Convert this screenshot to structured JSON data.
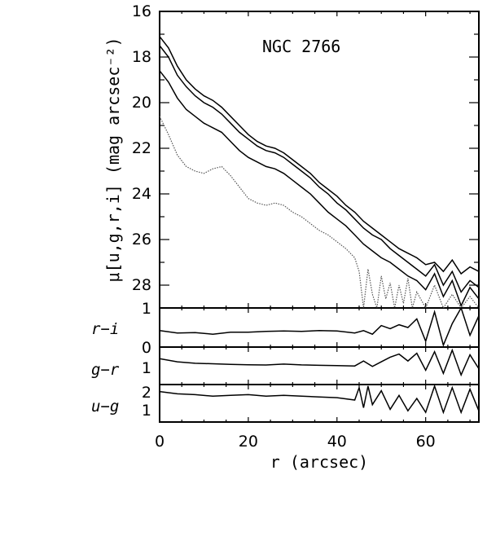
{
  "chart_data": [
    {
      "panel": "surface-brightness",
      "type": "line",
      "annotation": "NGC 2766",
      "ylabel": "μ[u,g,r,i] (mag arcsec⁻²)",
      "ylim": [
        16,
        29
      ],
      "y_inverted": true,
      "yticks": [
        "16",
        "18",
        "20",
        "22",
        "24",
        "26",
        "28"
      ],
      "xlim": [
        0,
        72
      ],
      "series": [
        {
          "style": "solid",
          "points": [
            [
              0,
              17.1
            ],
            [
              2,
              17.6
            ],
            [
              4,
              18.4
            ],
            [
              6,
              19.0
            ],
            [
              8,
              19.4
            ],
            [
              10,
              19.7
            ],
            [
              12,
              19.9
            ],
            [
              14,
              20.2
            ],
            [
              16,
              20.6
            ],
            [
              18,
              21.0
            ],
            [
              20,
              21.4
            ],
            [
              22,
              21.7
            ],
            [
              24,
              21.9
            ],
            [
              26,
              22.0
            ],
            [
              28,
              22.2
            ],
            [
              30,
              22.5
            ],
            [
              32,
              22.8
            ],
            [
              34,
              23.1
            ],
            [
              36,
              23.5
            ],
            [
              38,
              23.8
            ],
            [
              40,
              24.1
            ],
            [
              42,
              24.5
            ],
            [
              44,
              24.8
            ],
            [
              46,
              25.2
            ],
            [
              48,
              25.5
            ],
            [
              50,
              25.8
            ],
            [
              52,
              26.1
            ],
            [
              54,
              26.4
            ],
            [
              56,
              26.6
            ],
            [
              58,
              26.8
            ],
            [
              60,
              27.1
            ],
            [
              62,
              27.0
            ],
            [
              64,
              27.4
            ],
            [
              66,
              26.9
            ],
            [
              68,
              27.5
            ],
            [
              70,
              27.2
            ],
            [
              72,
              27.4
            ]
          ]
        },
        {
          "style": "solid",
          "points": [
            [
              0,
              17.5
            ],
            [
              2,
              18.0
            ],
            [
              4,
              18.8
            ],
            [
              6,
              19.3
            ],
            [
              8,
              19.7
            ],
            [
              10,
              20.0
            ],
            [
              12,
              20.2
            ],
            [
              14,
              20.5
            ],
            [
              16,
              20.9
            ],
            [
              18,
              21.3
            ],
            [
              20,
              21.6
            ],
            [
              22,
              21.9
            ],
            [
              24,
              22.1
            ],
            [
              26,
              22.2
            ],
            [
              28,
              22.4
            ],
            [
              30,
              22.7
            ],
            [
              32,
              23.0
            ],
            [
              34,
              23.3
            ],
            [
              36,
              23.7
            ],
            [
              38,
              24.0
            ],
            [
              40,
              24.4
            ],
            [
              42,
              24.7
            ],
            [
              44,
              25.1
            ],
            [
              46,
              25.5
            ],
            [
              48,
              25.8
            ],
            [
              50,
              26.0
            ],
            [
              52,
              26.4
            ],
            [
              54,
              26.7
            ],
            [
              56,
              27.0
            ],
            [
              58,
              27.3
            ],
            [
              60,
              27.6
            ],
            [
              62,
              27.1
            ],
            [
              64,
              28.0
            ],
            [
              66,
              27.4
            ],
            [
              68,
              28.3
            ],
            [
              70,
              27.8
            ],
            [
              72,
              28.1
            ]
          ]
        },
        {
          "style": "solid",
          "points": [
            [
              0,
              18.6
            ],
            [
              2,
              19.1
            ],
            [
              4,
              19.8
            ],
            [
              6,
              20.3
            ],
            [
              8,
              20.6
            ],
            [
              10,
              20.9
            ],
            [
              12,
              21.1
            ],
            [
              14,
              21.3
            ],
            [
              16,
              21.7
            ],
            [
              18,
              22.1
            ],
            [
              20,
              22.4
            ],
            [
              22,
              22.6
            ],
            [
              24,
              22.8
            ],
            [
              26,
              22.9
            ],
            [
              28,
              23.1
            ],
            [
              30,
              23.4
            ],
            [
              32,
              23.7
            ],
            [
              34,
              24.0
            ],
            [
              36,
              24.4
            ],
            [
              38,
              24.8
            ],
            [
              40,
              25.1
            ],
            [
              42,
              25.4
            ],
            [
              44,
              25.8
            ],
            [
              46,
              26.2
            ],
            [
              48,
              26.5
            ],
            [
              50,
              26.8
            ],
            [
              52,
              27.0
            ],
            [
              54,
              27.3
            ],
            [
              56,
              27.6
            ],
            [
              58,
              27.8
            ],
            [
              60,
              28.2
            ],
            [
              62,
              27.5
            ],
            [
              64,
              28.5
            ],
            [
              66,
              27.8
            ],
            [
              68,
              28.9
            ],
            [
              70,
              28.1
            ],
            [
              72,
              28.6
            ]
          ]
        },
        {
          "style": "dotted",
          "points": [
            [
              0,
              20.6
            ],
            [
              2,
              21.4
            ],
            [
              4,
              22.3
            ],
            [
              6,
              22.8
            ],
            [
              8,
              23.0
            ],
            [
              10,
              23.1
            ],
            [
              12,
              22.9
            ],
            [
              14,
              22.8
            ],
            [
              16,
              23.2
            ],
            [
              18,
              23.7
            ],
            [
              20,
              24.2
            ],
            [
              22,
              24.4
            ],
            [
              24,
              24.5
            ],
            [
              26,
              24.4
            ],
            [
              28,
              24.5
            ],
            [
              30,
              24.8
            ],
            [
              32,
              25.0
            ],
            [
              34,
              25.3
            ],
            [
              36,
              25.6
            ],
            [
              38,
              25.8
            ],
            [
              40,
              26.1
            ],
            [
              42,
              26.4
            ],
            [
              44,
              26.8
            ],
            [
              45,
              27.4
            ],
            [
              46,
              29.0
            ],
            [
              47,
              27.3
            ],
            [
              48,
              28.4
            ],
            [
              49,
              29.0
            ],
            [
              50,
              27.6
            ],
            [
              51,
              28.6
            ],
            [
              52,
              27.9
            ],
            [
              53,
              29.0
            ],
            [
              54,
              28.0
            ],
            [
              55,
              28.8
            ],
            [
              56,
              27.7
            ],
            [
              57,
              29.0
            ],
            [
              58,
              28.3
            ],
            [
              60,
              29.0
            ],
            [
              62,
              28.0
            ],
            [
              64,
              29.0
            ],
            [
              66,
              28.4
            ],
            [
              68,
              29.0
            ],
            [
              70,
              28.5
            ],
            [
              72,
              29.0
            ]
          ]
        }
      ]
    },
    {
      "panel": "r-i",
      "type": "line",
      "ylabel": "r−i",
      "ylim": [
        0,
        1
      ],
      "yticks": [
        "0",
        "1"
      ],
      "xlim": [
        0,
        72
      ],
      "series": [
        {
          "style": "solid",
          "points": [
            [
              0,
              0.42
            ],
            [
              4,
              0.36
            ],
            [
              8,
              0.37
            ],
            [
              12,
              0.33
            ],
            [
              16,
              0.38
            ],
            [
              20,
              0.38
            ],
            [
              24,
              0.4
            ],
            [
              28,
              0.41
            ],
            [
              32,
              0.4
            ],
            [
              36,
              0.42
            ],
            [
              40,
              0.41
            ],
            [
              44,
              0.36
            ],
            [
              46,
              0.42
            ],
            [
              48,
              0.33
            ],
            [
              50,
              0.55
            ],
            [
              52,
              0.47
            ],
            [
              54,
              0.57
            ],
            [
              56,
              0.5
            ],
            [
              58,
              0.72
            ],
            [
              60,
              0.15
            ],
            [
              62,
              0.9
            ],
            [
              64,
              0.05
            ],
            [
              66,
              0.6
            ],
            [
              68,
              1.0
            ],
            [
              70,
              0.3
            ],
            [
              72,
              0.8
            ]
          ]
        }
      ]
    },
    {
      "panel": "g-r",
      "type": "line",
      "ylabel": "g−r",
      "yticks": [
        "1"
      ],
      "xlim": [
        0,
        72
      ],
      "series": [
        {
          "style": "solid",
          "points": [
            [
              0,
              1.25
            ],
            [
              4,
              1.05
            ],
            [
              8,
              0.95
            ],
            [
              12,
              0.92
            ],
            [
              16,
              0.88
            ],
            [
              20,
              0.86
            ],
            [
              24,
              0.84
            ],
            [
              28,
              0.9
            ],
            [
              32,
              0.85
            ],
            [
              36,
              0.82
            ],
            [
              40,
              0.8
            ],
            [
              44,
              0.78
            ],
            [
              46,
              1.1
            ],
            [
              48,
              0.75
            ],
            [
              50,
              1.05
            ],
            [
              52,
              1.35
            ],
            [
              54,
              1.55
            ],
            [
              56,
              1.1
            ],
            [
              58,
              1.6
            ],
            [
              60,
              0.5
            ],
            [
              62,
              1.7
            ],
            [
              64,
              0.3
            ],
            [
              66,
              1.8
            ],
            [
              68,
              0.2
            ],
            [
              70,
              1.5
            ],
            [
              72,
              0.6
            ]
          ]
        }
      ]
    },
    {
      "panel": "u-g",
      "type": "line",
      "ylabel": "u−g",
      "yticks": [
        "2",
        "1"
      ],
      "xlim": [
        0,
        72
      ],
      "series": [
        {
          "style": "solid",
          "points": [
            [
              0,
              1.85
            ],
            [
              4,
              1.7
            ],
            [
              8,
              1.65
            ],
            [
              12,
              1.55
            ],
            [
              16,
              1.6
            ],
            [
              20,
              1.65
            ],
            [
              24,
              1.55
            ],
            [
              28,
              1.6
            ],
            [
              32,
              1.55
            ],
            [
              36,
              1.5
            ],
            [
              40,
              1.45
            ],
            [
              44,
              1.3
            ],
            [
              45,
              2.1
            ],
            [
              46,
              0.8
            ],
            [
              47,
              2.2
            ],
            [
              48,
              1.0
            ],
            [
              50,
              1.9
            ],
            [
              52,
              0.7
            ],
            [
              54,
              1.6
            ],
            [
              56,
              0.6
            ],
            [
              58,
              1.4
            ],
            [
              60,
              0.5
            ],
            [
              62,
              2.2
            ],
            [
              64,
              0.5
            ],
            [
              66,
              2.1
            ],
            [
              68,
              0.5
            ],
            [
              70,
              2.0
            ],
            [
              72,
              0.6
            ]
          ]
        }
      ]
    }
  ],
  "xaxis": {
    "label": "r (arcsec)",
    "ticks": [
      "0",
      "20",
      "40",
      "60"
    ]
  }
}
